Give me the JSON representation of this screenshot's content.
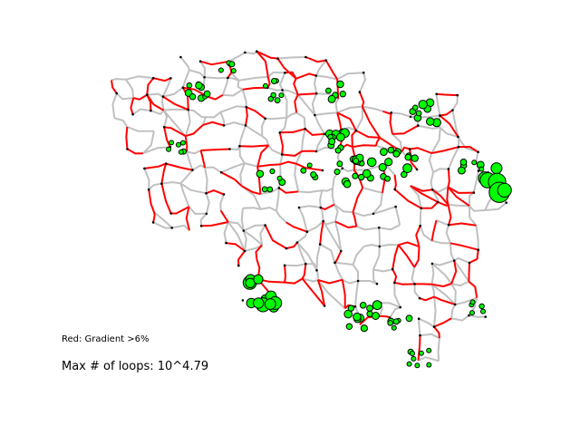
{
  "figure": {
    "legend_gradient": "Red: Gradient >6%",
    "legend_loops": "Max # of loops: 10^4.79"
  },
  "colors": {
    "steep_edge": "#ff0000",
    "flat_edge": "#c0c0c0",
    "junction": "#000000",
    "loop_node_fill": "#00ff00",
    "loop_node_stroke": "#000000"
  }
}
